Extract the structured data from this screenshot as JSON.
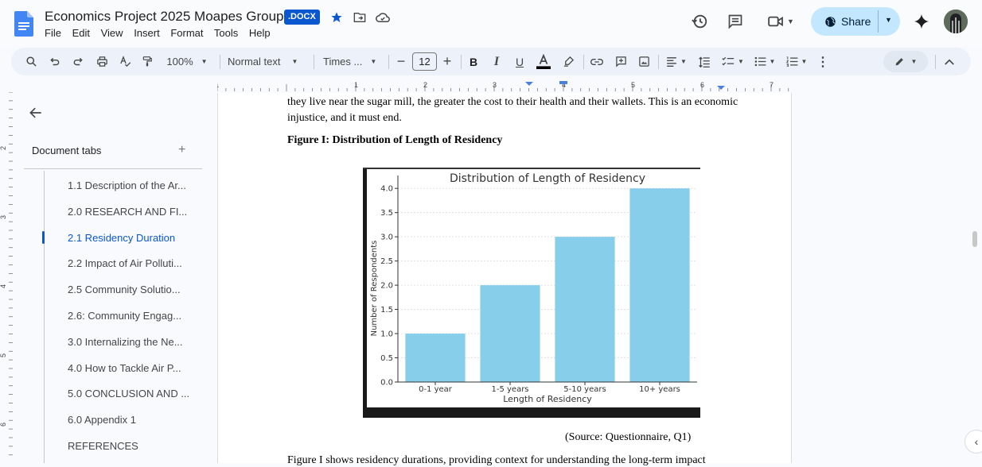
{
  "header": {
    "title": "Economics Project 2025 Moapes Group",
    "badge": ".DOCX",
    "menus": [
      "File",
      "Edit",
      "View",
      "Insert",
      "Format",
      "Tools",
      "Help"
    ],
    "share_label": "Share"
  },
  "toolbar": {
    "zoom": "100%",
    "style": "Normal text",
    "font": "Times ...",
    "font_size": "12"
  },
  "ruler": {
    "numbers": [
      "1",
      "1",
      "2",
      "3",
      "4",
      "5",
      "6",
      "7"
    ]
  },
  "vruler": {
    "numbers": [
      "2",
      "3",
      "4",
      "5",
      "6"
    ]
  },
  "sidebar": {
    "header": "Document tabs",
    "plus": "+",
    "items": [
      {
        "label": "1.1 Description of the Ar...",
        "active": false
      },
      {
        "label": "2.0 RESEARCH AND FI...",
        "active": false
      },
      {
        "label": "2.1 Residency Duration",
        "active": true
      },
      {
        "label": "2.2 Impact of Air Polluti...",
        "active": false
      },
      {
        "label": "2.5 Community Solutio...",
        "active": false
      },
      {
        "label": "2.6: Community Engag...",
        "active": false
      },
      {
        "label": "3.0 Internalizing the Ne...",
        "active": false
      },
      {
        "label": "4.0 How to Tackle Air P...",
        "active": false
      },
      {
        "label": "5.0 CONCLUSION AND ...",
        "active": false
      },
      {
        "label": "6.0 Appendix 1",
        "active": false
      },
      {
        "label": "REFERENCES",
        "active": false
      }
    ]
  },
  "document": {
    "line1": "they live near the sugar mill, the greater the cost to their health and their wallets. This is an economic",
    "line2": "injustice, and it must end.",
    "figure_caption": "Figure I: Distribution of Length of Residency",
    "source": "(Source: Questionnaire, Q1)",
    "bottom_line": "Figure I shows residency durations, providing context for understanding the long-term impact"
  },
  "chart_data": {
    "type": "bar",
    "title": "Distribution of Length of Residency",
    "xlabel": "Length of Residency",
    "ylabel": "Number of Respondents",
    "categories": [
      "0-1 year",
      "1-5 years",
      "5-10 years",
      "10+ years"
    ],
    "values": [
      1,
      2,
      3,
      4
    ],
    "ylim": [
      0,
      4.2
    ],
    "yticks": [
      "0.0",
      "0.5",
      "1.0",
      "1.5",
      "2.0",
      "2.5",
      "3.0",
      "3.5",
      "4.0"
    ],
    "grid": true,
    "bar_color": "#87ceeb"
  },
  "colors": {
    "accent": "#0b57d0",
    "share_bg": "#c2e7ff"
  }
}
